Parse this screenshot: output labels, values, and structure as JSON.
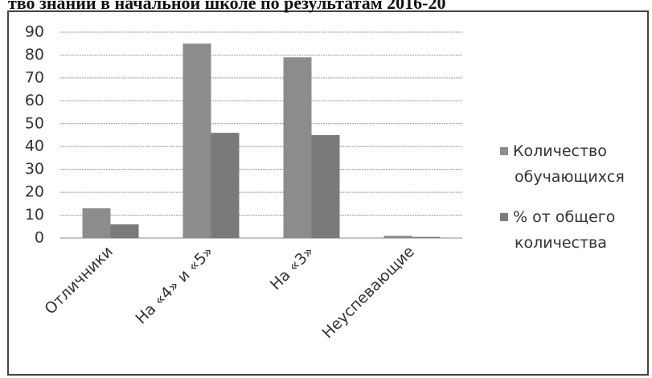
{
  "chart_data": {
    "type": "bar",
    "title": "тво знаний в начальной школе по результатам 2016-20",
    "categories": [
      "Отличники",
      "На «4» и «5»",
      "На «3»",
      "Неуспевающие"
    ],
    "series": [
      {
        "name": "Количество обучающихся",
        "color": "#8c8c8c",
        "values": [
          13,
          85,
          79,
          1
        ]
      },
      {
        "name": "% от общего количества",
        "color": "#7a7a7a",
        "values": [
          6,
          46,
          45,
          0.5
        ]
      }
    ],
    "ylim": [
      0,
      90
    ],
    "yticks": [
      0,
      10,
      20,
      30,
      40,
      50,
      60,
      70,
      80,
      90
    ],
    "grid": true,
    "legend": "right"
  }
}
